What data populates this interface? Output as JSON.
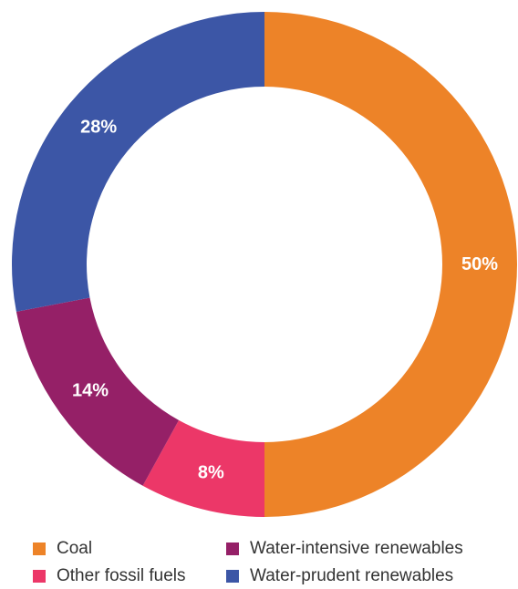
{
  "chart_data": {
    "type": "pie",
    "title": "",
    "categories": [
      "Coal",
      "Other fossil fuels",
      "Water-intensive renewables",
      "Water-prudent renewables"
    ],
    "values": [
      50,
      8,
      14,
      28
    ],
    "labels": [
      "50%",
      "8%",
      "14%",
      "28%"
    ],
    "colors": [
      "#ED8328",
      "#EC3768",
      "#952067",
      "#3C56A6"
    ],
    "donut": true,
    "legend_position": "bottom"
  },
  "legend": {
    "items": [
      {
        "label": "Coal",
        "color": "#ED8328"
      },
      {
        "label": "Other fossil fuels",
        "color": "#EC3768"
      },
      {
        "label": "Water-intensive renewables",
        "color": "#952067"
      },
      {
        "label": "Water-prudent renewables",
        "color": "#3C56A6"
      }
    ]
  }
}
